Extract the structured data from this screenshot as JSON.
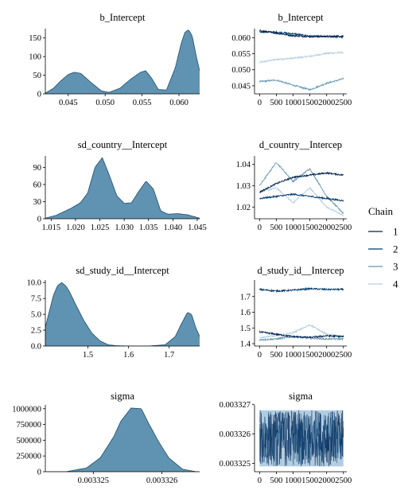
{
  "colors": {
    "density_fill": "#6093b1",
    "density_line": "#1f4e6d",
    "chain_1": "#011f4b",
    "chain_2": "#03396c",
    "chain_3": "#6497b1",
    "chain_4": "#b3cde0",
    "axis": "#000000"
  },
  "legend": {
    "title": "Chain",
    "labels": [
      "1",
      "2",
      "3",
      "4"
    ],
    "placement": "right"
  },
  "chart_data": [
    {
      "type": "area",
      "title": "b_Intercept",
      "xlim": [
        0.0419,
        0.0628
      ],
      "ylim": [
        0,
        175
      ],
      "x_ticks": [
        0.045,
        0.05,
        0.055,
        0.06
      ],
      "x_tick_labels": [
        "0.045",
        "0.050",
        "0.055",
        "0.060"
      ],
      "y_ticks": [
        0,
        50,
        100,
        150
      ],
      "y_tick_labels": [
        "0",
        "50",
        "100",
        "150"
      ],
      "x": [
        0.0419,
        0.043,
        0.044,
        0.045,
        0.0458,
        0.0467,
        0.048,
        0.0495,
        0.0505,
        0.052,
        0.0535,
        0.0548,
        0.0555,
        0.0563,
        0.0572,
        0.0583,
        0.0595,
        0.0603,
        0.0608,
        0.0613,
        0.0618,
        0.0623,
        0.0628
      ],
      "values": [
        2,
        15,
        35,
        52,
        58,
        55,
        32,
        8,
        4,
        15,
        40,
        58,
        62,
        42,
        12,
        10,
        70,
        135,
        165,
        172,
        155,
        105,
        62
      ]
    },
    {
      "type": "line",
      "title": "b_Intercept",
      "xlim": [
        -150,
        2600
      ],
      "ylim": [
        0.0425,
        0.0628
      ],
      "x_ticks": [
        0,
        500,
        1000,
        1500,
        2000,
        2500
      ],
      "x_tick_labels": [
        "0",
        "500",
        "1000",
        "1500",
        "2000",
        "2500"
      ],
      "y_ticks": [
        0.045,
        0.05,
        0.055,
        0.06
      ],
      "y_tick_labels": [
        "0.045",
        "0.050",
        "0.055",
        "0.060"
      ],
      "series": [
        {
          "name": "1",
          "x": [
            0,
            500,
            1000,
            1500,
            2000,
            2500
          ],
          "values": [
            0.0622,
            0.0614,
            0.0606,
            0.0603,
            0.0604,
            0.0605
          ]
        },
        {
          "name": "2",
          "x": [
            0,
            500,
            1000,
            1500,
            2000,
            2500
          ],
          "values": [
            0.0618,
            0.0617,
            0.0612,
            0.0605,
            0.0603,
            0.0602
          ]
        },
        {
          "name": "3",
          "x": [
            0,
            500,
            1000,
            1500,
            2000,
            2500
          ],
          "values": [
            0.0463,
            0.0468,
            0.0452,
            0.0438,
            0.0458,
            0.0472
          ]
        },
        {
          "name": "4",
          "x": [
            0,
            500,
            1000,
            1500,
            2000,
            2500
          ],
          "values": [
            0.0523,
            0.0532,
            0.0536,
            0.0542,
            0.0551,
            0.0554
          ]
        }
      ]
    },
    {
      "type": "area",
      "title": "sd_country__Intercept",
      "xlim": [
        1.0138,
        1.0455
      ],
      "ylim": [
        0,
        110
      ],
      "x_ticks": [
        1.015,
        1.02,
        1.025,
        1.03,
        1.035,
        1.04,
        1.045
      ],
      "x_tick_labels": [
        "1.015",
        "1.020",
        "1.025",
        "1.030",
        "1.035",
        "1.040",
        "1.045"
      ],
      "y_ticks": [
        0,
        30,
        60,
        90
      ],
      "y_tick_labels": [
        "0",
        "30",
        "60",
        "90"
      ],
      "x": [
        1.0138,
        1.016,
        1.019,
        1.021,
        1.0225,
        1.024,
        1.0255,
        1.027,
        1.0285,
        1.03,
        1.0315,
        1.033,
        1.0345,
        1.036,
        1.0375,
        1.039,
        1.041,
        1.043,
        1.0455
      ],
      "values": [
        1,
        6,
        18,
        28,
        45,
        90,
        107,
        75,
        40,
        27,
        28,
        48,
        66,
        52,
        14,
        8,
        9,
        7,
        1
      ]
    },
    {
      "type": "line",
      "title": "d_country__Intercep",
      "xlim": [
        -150,
        2600
      ],
      "ylim": [
        1.0145,
        1.044
      ],
      "x_ticks": [
        0,
        500,
        1000,
        1500,
        2000,
        2500
      ],
      "x_tick_labels": [
        "0",
        "500",
        "1000",
        "1500",
        "2000",
        "2500"
      ],
      "y_ticks": [
        1.02,
        1.03,
        1.04
      ],
      "y_tick_labels": [
        "1.02",
        "1.03",
        "1.04"
      ],
      "series": [
        {
          "name": "1",
          "x": [
            0,
            500,
            1000,
            1500,
            2000,
            2500
          ],
          "values": [
            1.027,
            1.031,
            1.034,
            1.035,
            1.036,
            1.035
          ]
        },
        {
          "name": "2",
          "x": [
            0,
            500,
            1000,
            1500,
            2000,
            2500
          ],
          "values": [
            1.024,
            1.025,
            1.026,
            1.025,
            1.024,
            1.023
          ]
        },
        {
          "name": "3",
          "x": [
            0,
            500,
            1000,
            1500,
            2000,
            2500
          ],
          "values": [
            1.03,
            1.041,
            1.032,
            1.038,
            1.025,
            1.017
          ]
        },
        {
          "name": "4",
          "x": [
            0,
            500,
            1000,
            1500,
            2000,
            2500
          ],
          "values": [
            1.027,
            1.029,
            1.022,
            1.029,
            1.02,
            1.016
          ]
        }
      ]
    },
    {
      "type": "area",
      "title": "sd_study_id__Intercept",
      "xlim": [
        1.395,
        1.775
      ],
      "ylim": [
        0,
        10.4
      ],
      "x_ticks": [
        1.5,
        1.6,
        1.7
      ],
      "x_tick_labels": [
        "1.5",
        "1.6",
        "1.7"
      ],
      "y_ticks": [
        0,
        2.5,
        5,
        7.5,
        10
      ],
      "y_tick_labels": [
        "0.0",
        "2.5",
        "5.0",
        "7.5",
        "10.0"
      ],
      "x": [
        1.395,
        1.405,
        1.415,
        1.425,
        1.435,
        1.445,
        1.455,
        1.47,
        1.49,
        1.51,
        1.53,
        1.55,
        1.57,
        1.6,
        1.65,
        1.69,
        1.715,
        1.73,
        1.745,
        1.755,
        1.765,
        1.775
      ],
      "values": [
        3.0,
        5.5,
        8.0,
        9.5,
        10.0,
        9.5,
        8.5,
        6.5,
        4.0,
        2.0,
        0.8,
        0.2,
        0.05,
        0,
        0,
        0.2,
        1.5,
        3.5,
        5.3,
        5.0,
        3.0,
        1.5
      ]
    },
    {
      "type": "line",
      "title": "d_study_id__Intercep",
      "xlim": [
        -150,
        2600
      ],
      "ylim": [
        1.385,
        1.805
      ],
      "x_ticks": [
        0,
        500,
        1000,
        1500,
        2000,
        2500
      ],
      "x_tick_labels": [
        "0",
        "500",
        "1000",
        "1500",
        "2000",
        "2500"
      ],
      "y_ticks": [
        1.4,
        1.5,
        1.6,
        1.7
      ],
      "y_tick_labels": [
        "1.4",
        "1.5",
        "1.6",
        "1.7"
      ],
      "series": [
        {
          "name": "1",
          "x": [
            0,
            500,
            1000,
            1500,
            2000,
            2500
          ],
          "values": [
            1.475,
            1.46,
            1.445,
            1.44,
            1.45,
            1.445
          ]
        },
        {
          "name": "2",
          "x": [
            0,
            500,
            1000,
            1500,
            2000,
            2500
          ],
          "values": [
            1.745,
            1.735,
            1.74,
            1.75,
            1.745,
            1.745
          ]
        },
        {
          "name": "3",
          "x": [
            0,
            500,
            1000,
            1500,
            2000,
            2500
          ],
          "values": [
            1.425,
            1.43,
            1.445,
            1.435,
            1.43,
            1.43
          ]
        },
        {
          "name": "4",
          "x": [
            0,
            500,
            1000,
            1500,
            2000,
            2500
          ],
          "values": [
            1.44,
            1.45,
            1.47,
            1.52,
            1.46,
            1.445
          ]
        }
      ]
    },
    {
      "type": "area",
      "title": "sigma",
      "xlim": [
        0.0033243,
        0.00332655
      ],
      "ylim": [
        0,
        1060000
      ],
      "x_ticks": [
        0.003325,
        0.003326
      ],
      "x_tick_labels": [
        "0.003325",
        "0.003326"
      ],
      "y_ticks": [
        0,
        250000,
        500000,
        750000,
        1000000
      ],
      "y_tick_labels": [
        "0",
        "250000",
        "500000",
        "750000",
        "1000000"
      ],
      "x": [
        0.0033246,
        0.0033249,
        0.0033251,
        0.0033253,
        0.0033254,
        0.00332555,
        0.0033257,
        0.0033258,
        0.00332595,
        0.0033261,
        0.0033263,
        0.0033265
      ],
      "values": [
        0,
        60000,
        220000,
        560000,
        800000,
        1010000,
        1000000,
        780000,
        480000,
        220000,
        40000,
        0
      ]
    },
    {
      "type": "line",
      "title": "sigma",
      "xlim": [
        -150,
        2600
      ],
      "ylim": [
        0.00332472,
        0.00332698
      ],
      "x_ticks": [
        0,
        500,
        1000,
        1500,
        2000,
        2500
      ],
      "x_tick_labels": [
        "0",
        "500",
        "1000",
        "1500",
        "2000",
        "2500"
      ],
      "y_ticks": [
        0.003325,
        0.003326,
        0.003327
      ],
      "y_tick_labels": [
        "0.003325",
        "0.003326",
        "0.003327"
      ],
      "band_range": [
        0.0033249,
        0.0033268
      ],
      "series": [
        {
          "name": "1",
          "x": [
            0,
            2500
          ],
          "values": [
            0.0033258,
            0.0033258
          ]
        },
        {
          "name": "2",
          "x": [
            0,
            2500
          ],
          "values": [
            0.0033258,
            0.0033258
          ]
        },
        {
          "name": "3",
          "x": [
            0,
            2500
          ],
          "values": [
            0.0033258,
            0.0033258
          ]
        },
        {
          "name": "4",
          "x": [
            0,
            2500
          ],
          "values": [
            0.0033258,
            0.0033258
          ]
        }
      ]
    }
  ]
}
